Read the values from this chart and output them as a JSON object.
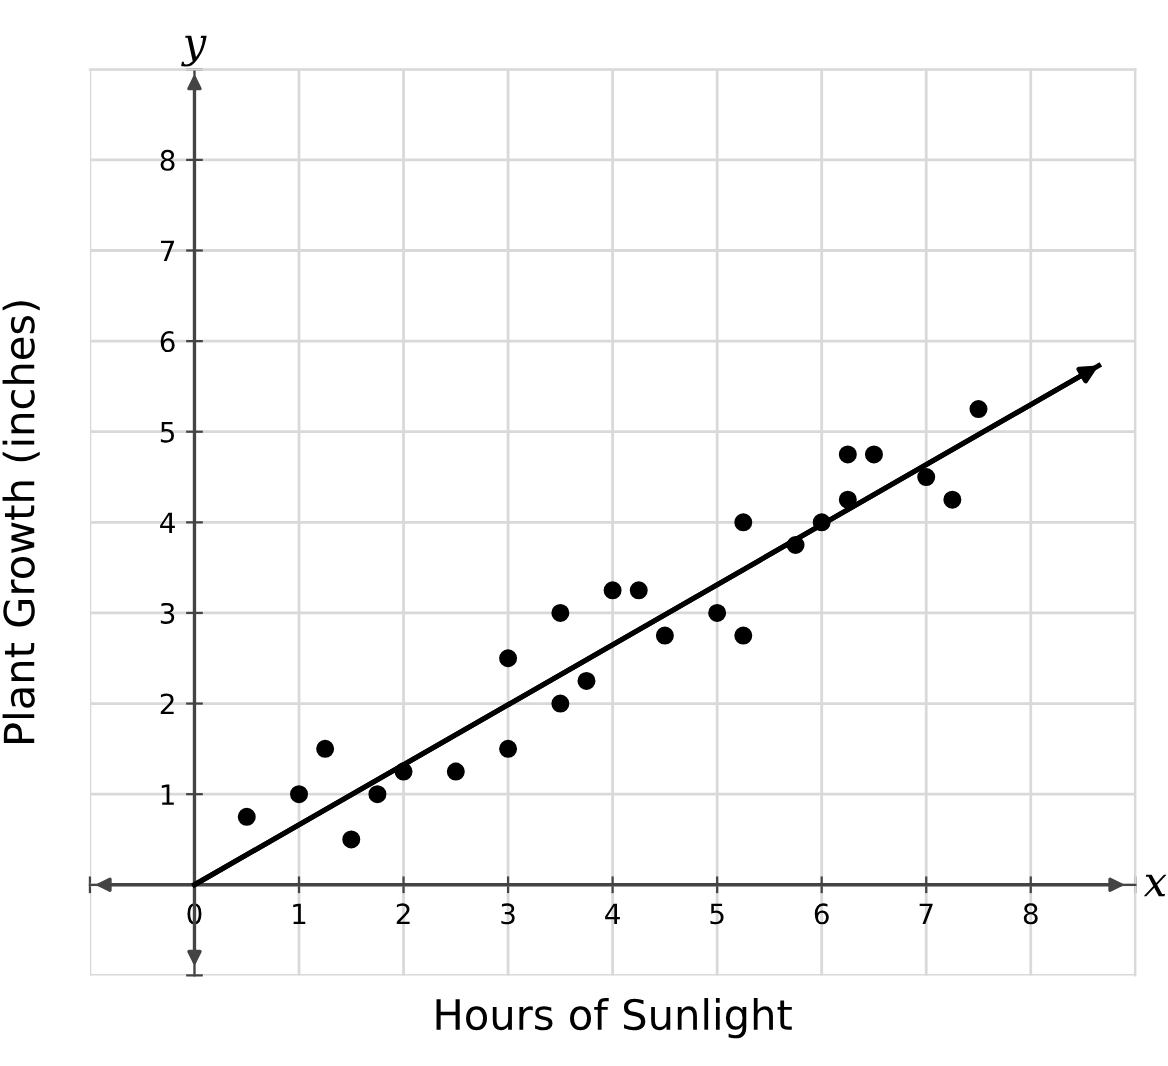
{
  "chart_data": {
    "type": "scatter",
    "xlabel": "Hours of Sunlight",
    "ylabel": "Plant Growth (inches)",
    "annotations": [
      "x",
      "y"
    ],
    "series": [
      {
        "marker": "circle",
        "color": "#000000",
        "x": [
          0.5,
          1,
          1.25,
          1.5,
          1.75,
          2,
          2.5,
          3,
          3,
          3.5,
          3.5,
          3.75,
          4,
          4.25,
          4.5,
          5,
          5.25,
          5.25,
          5.75,
          6,
          6.25,
          6.25,
          6.5,
          7,
          7.25,
          7.5
        ],
        "values": [
          0.75,
          1,
          1.5,
          0.5,
          1,
          1.25,
          1.25,
          2.5,
          1.5,
          3,
          2,
          2.25,
          3.25,
          3.25,
          2.75,
          3,
          4,
          2.75,
          3.75,
          4,
          4.75,
          4.25,
          4.75,
          4.5,
          4.25,
          5.25
        ]
      },
      {
        "type": "line",
        "color": "#000000",
        "x": [
          0,
          8.65
        ],
        "values": [
          0,
          5.73
        ]
      }
    ],
    "xlim": [
      -1,
      9
    ],
    "ylim": [
      -1,
      9
    ],
    "xticks": [
      {
        "value": -1,
        "label": null
      },
      0,
      1,
      2,
      3,
      4,
      5,
      6,
      7,
      8,
      {
        "value": 9,
        "label": null
      }
    ],
    "yticks": [
      {
        "value": -1,
        "label": null
      },
      {
        "value": 0,
        "label": null
      },
      1,
      2,
      3,
      4,
      5,
      6,
      7,
      8,
      {
        "value": 9,
        "label": null
      }
    ],
    "grid": true,
    "legend": false
  }
}
